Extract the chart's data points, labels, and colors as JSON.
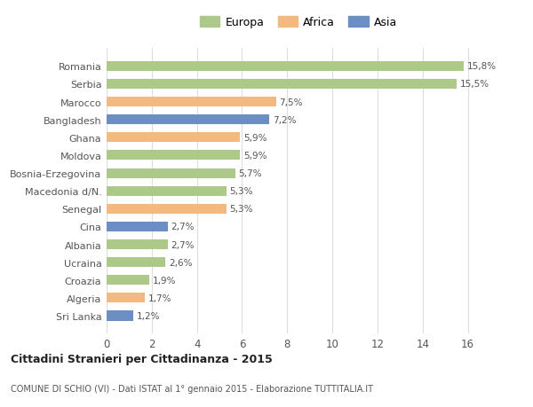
{
  "categories": [
    "Romania",
    "Serbia",
    "Marocco",
    "Bangladesh",
    "Ghana",
    "Moldova",
    "Bosnia-Erzegovina",
    "Macedonia d/N.",
    "Senegal",
    "Cina",
    "Albania",
    "Ucraina",
    "Croazia",
    "Algeria",
    "Sri Lanka"
  ],
  "values": [
    15.8,
    15.5,
    7.5,
    7.2,
    5.9,
    5.9,
    5.7,
    5.3,
    5.3,
    2.7,
    2.7,
    2.6,
    1.9,
    1.7,
    1.2
  ],
  "labels": [
    "15,8%",
    "15,5%",
    "7,5%",
    "7,2%",
    "5,9%",
    "5,9%",
    "5,7%",
    "5,3%",
    "5,3%",
    "2,7%",
    "2,7%",
    "2,6%",
    "1,9%",
    "1,7%",
    "1,2%"
  ],
  "continents": [
    "Europa",
    "Europa",
    "Africa",
    "Asia",
    "Africa",
    "Europa",
    "Europa",
    "Europa",
    "Africa",
    "Asia",
    "Europa",
    "Europa",
    "Europa",
    "Africa",
    "Asia"
  ],
  "colors": {
    "Europa": "#adc98a",
    "Africa": "#f4b97e",
    "Asia": "#6b8fc2"
  },
  "legend_labels": [
    "Europa",
    "Africa",
    "Asia"
  ],
  "title": "Cittadini Stranieri per Cittadinanza - 2015",
  "subtitle": "COMUNE DI SCHIO (VI) - Dati ISTAT al 1° gennaio 2015 - Elaborazione TUTTITALIA.IT",
  "xlim": [
    0,
    17
  ],
  "xticks": [
    0,
    2,
    4,
    6,
    8,
    10,
    12,
    14,
    16
  ],
  "background_color": "#ffffff",
  "bar_height": 0.55,
  "grid_color": "#dddddd"
}
